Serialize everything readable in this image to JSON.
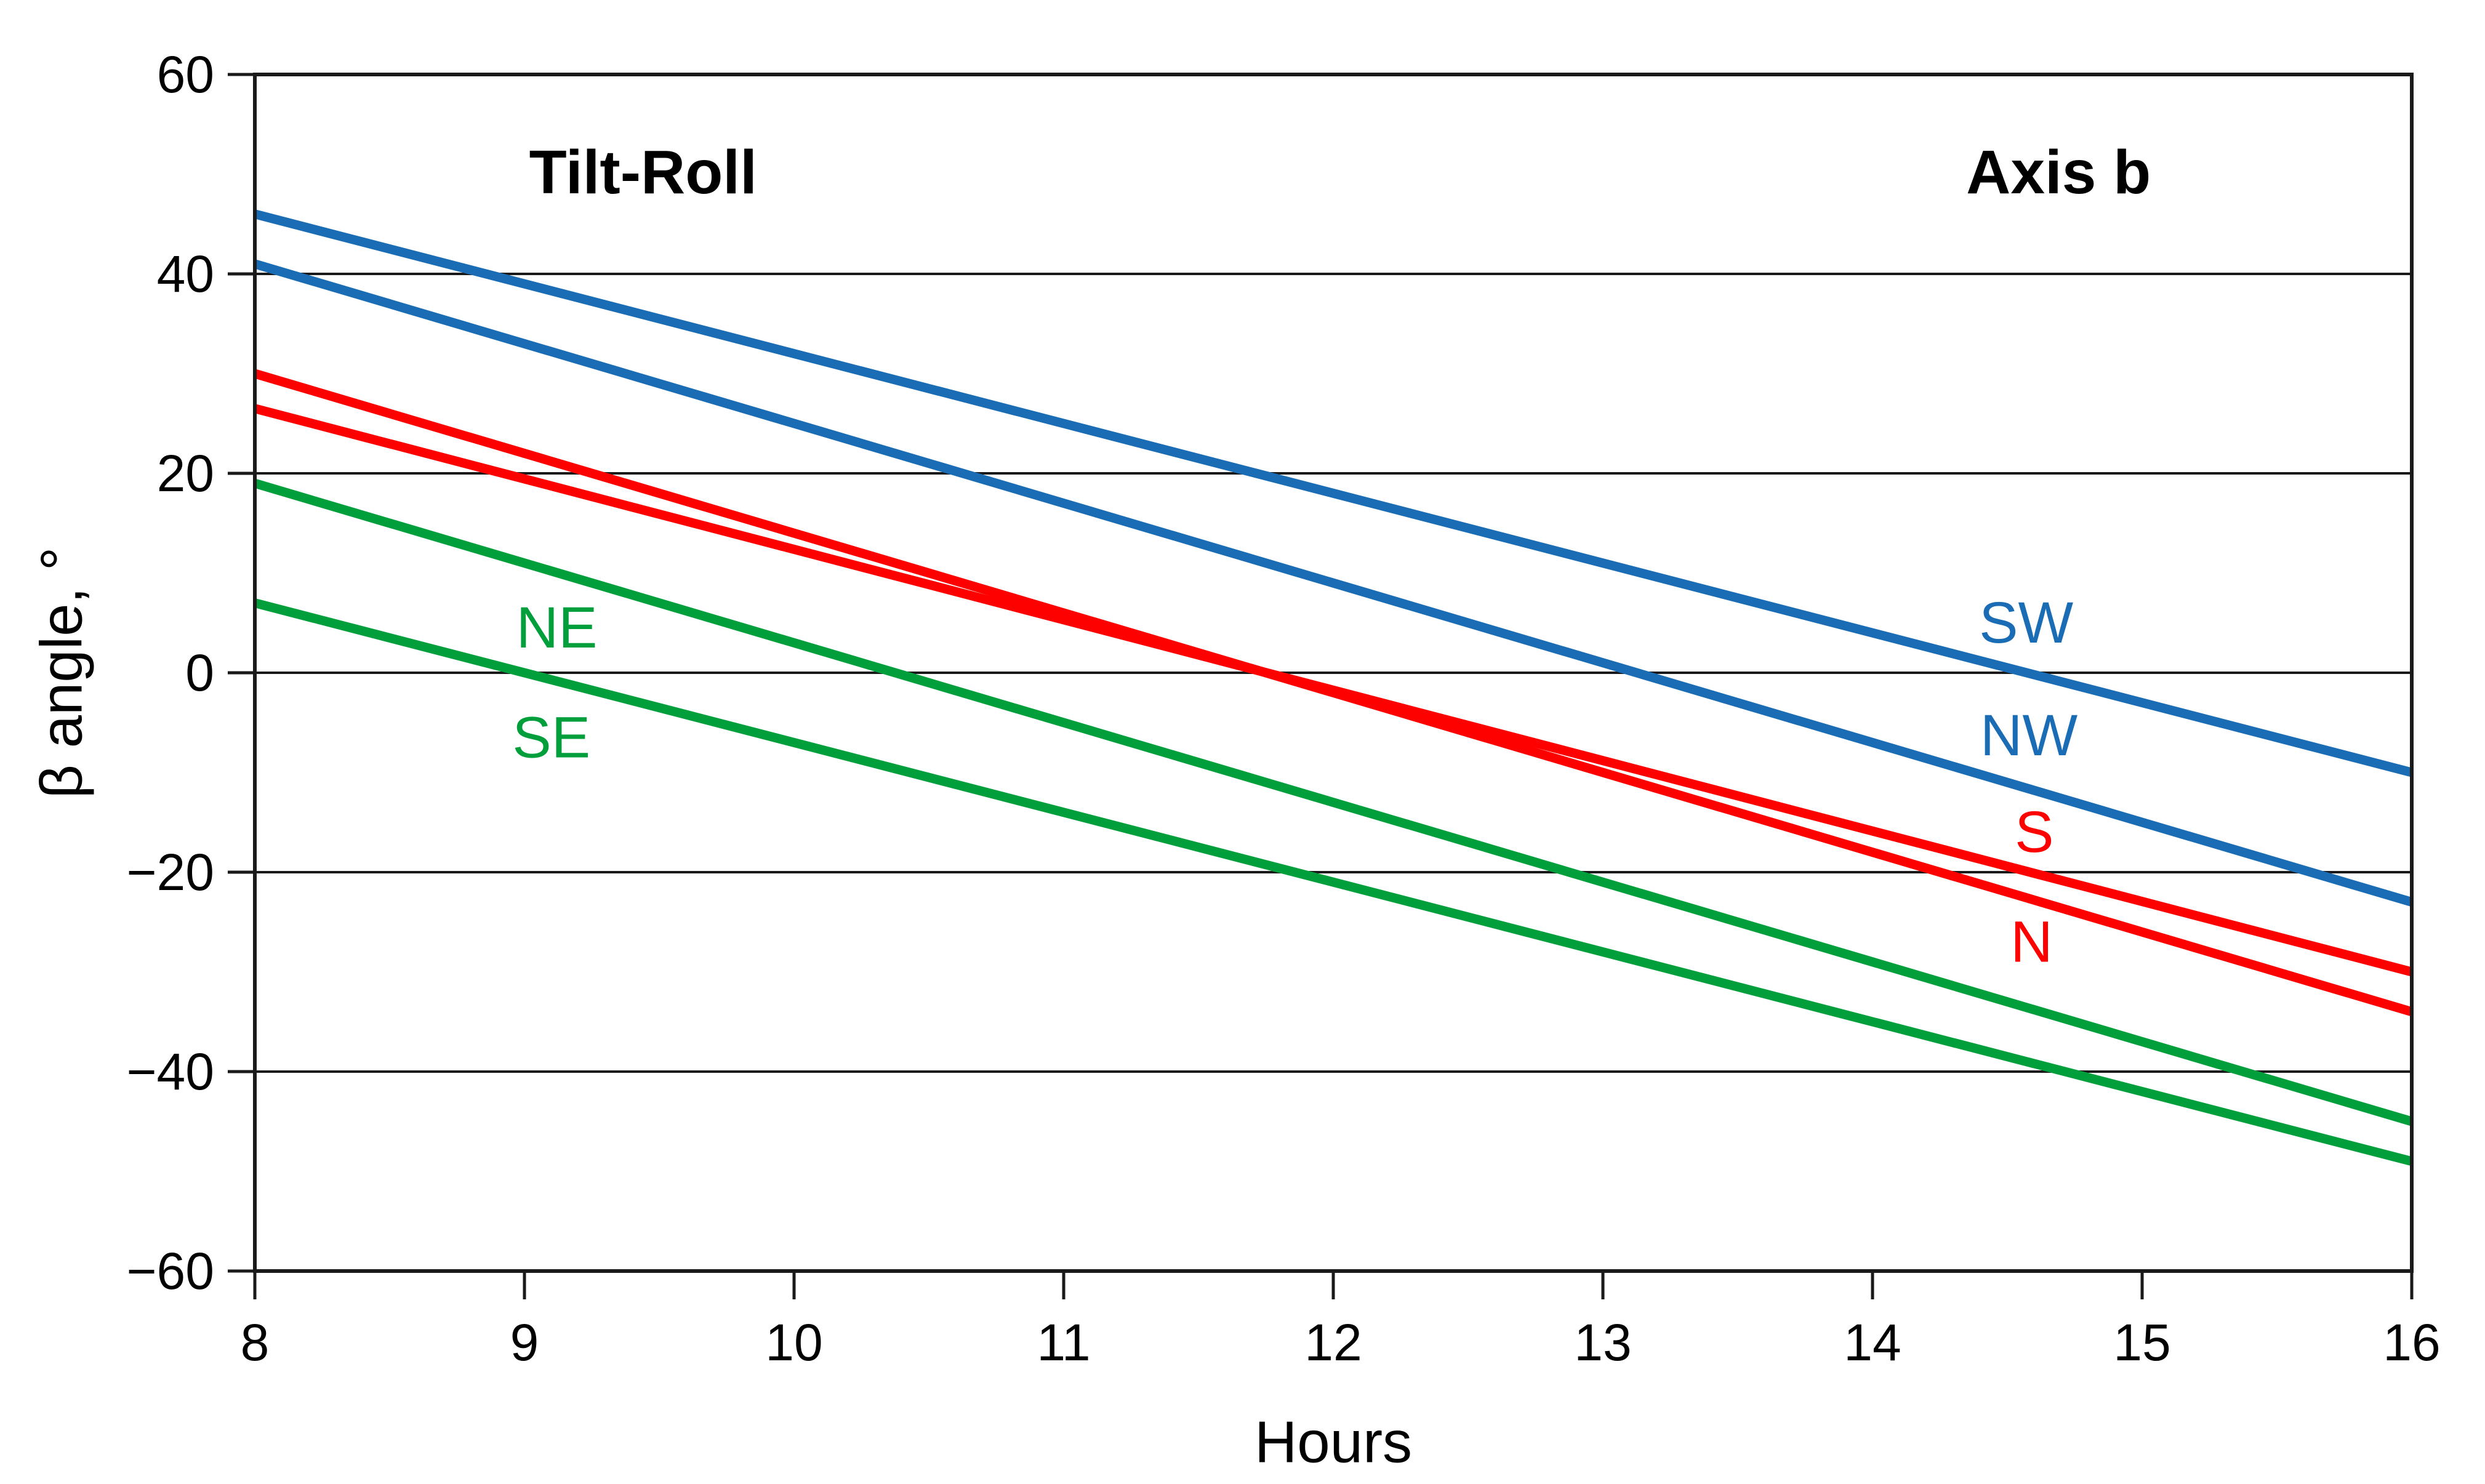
{
  "figure": {
    "background": "#ffffff",
    "axis_color": "#1a1a1a",
    "text_color": "#000000"
  },
  "chart_data": {
    "type": "line",
    "title_left": "Tilt-Roll",
    "title_right": "Axis b",
    "xlabel": "Hours",
    "ylabel": "β angle, °",
    "xlim": [
      8,
      16
    ],
    "ylim": [
      -60,
      60
    ],
    "x_ticks": [
      8,
      9,
      10,
      11,
      12,
      13,
      14,
      15,
      16
    ],
    "y_ticks": [
      60,
      40,
      20,
      0,
      -20,
      -40,
      -60
    ],
    "grid": "horizontal-only",
    "legend_position": "inline-labels",
    "x": [
      8,
      16
    ],
    "series": [
      {
        "name": "SW",
        "color": "#1a6cb5",
        "values": [
          46,
          -10
        ],
        "label": {
          "text": "SW",
          "x": 14.57,
          "y": 5.0
        }
      },
      {
        "name": "NW",
        "color": "#1a6cb5",
        "values": [
          41,
          -23
        ],
        "label": {
          "text": "NW",
          "x": 14.58,
          "y": -6.3
        }
      },
      {
        "name": "S",
        "color": "#fd0000",
        "values": [
          26.5,
          -30
        ],
        "label": {
          "text": "S",
          "x": 14.6,
          "y": -16.0
        }
      },
      {
        "name": "N",
        "color": "#fd0000",
        "values": [
          30,
          -34
        ],
        "label": {
          "text": "N",
          "x": 14.59,
          "y": -27.0
        }
      },
      {
        "name": "NE",
        "color": "#009f3c",
        "values": [
          19,
          -45
        ],
        "label": {
          "text": "NE",
          "x": 9.12,
          "y": 4.5
        }
      },
      {
        "name": "SE",
        "color": "#009f3c",
        "values": [
          7,
          -49
        ],
        "label": {
          "text": "SE",
          "x": 9.1,
          "y": -6.5
        }
      }
    ],
    "annotations": [
      {
        "text": "Tilt-Roll",
        "x": 9.44,
        "y": 50.2,
        "bold": true
      },
      {
        "text": "Axis b",
        "x": 14.69,
        "y": 50.2,
        "bold": true
      }
    ]
  }
}
